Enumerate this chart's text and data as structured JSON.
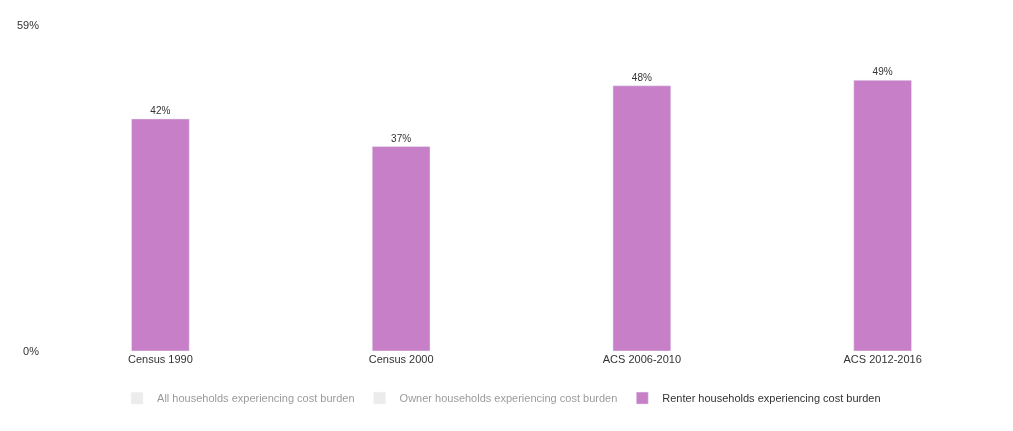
{
  "chart_data": {
    "type": "bar",
    "categories": [
      "Census 1990",
      "Census 2000",
      "ACS 2006-2010",
      "ACS 2012-2016"
    ],
    "series": [
      {
        "name": "All households experiencing cost burden",
        "color": "#d9d9d9",
        "values": [
          null,
          null,
          null,
          null
        ]
      },
      {
        "name": "Owner households experiencing cost burden",
        "color": "#d9d9d9",
        "values": [
          null,
          null,
          null,
          null
        ]
      },
      {
        "name": "Renter households experiencing cost burden",
        "color": "#c77fc7",
        "values": [
          42,
          37,
          48,
          49
        ],
        "value_labels": [
          "42%",
          "37%",
          "48%",
          "49%"
        ]
      }
    ],
    "ylim": [
      0,
      59
    ],
    "yticks": [
      {
        "value": 0,
        "label": "0%"
      },
      {
        "value": 59,
        "label": "59%"
      }
    ],
    "legend": "bottom left"
  }
}
